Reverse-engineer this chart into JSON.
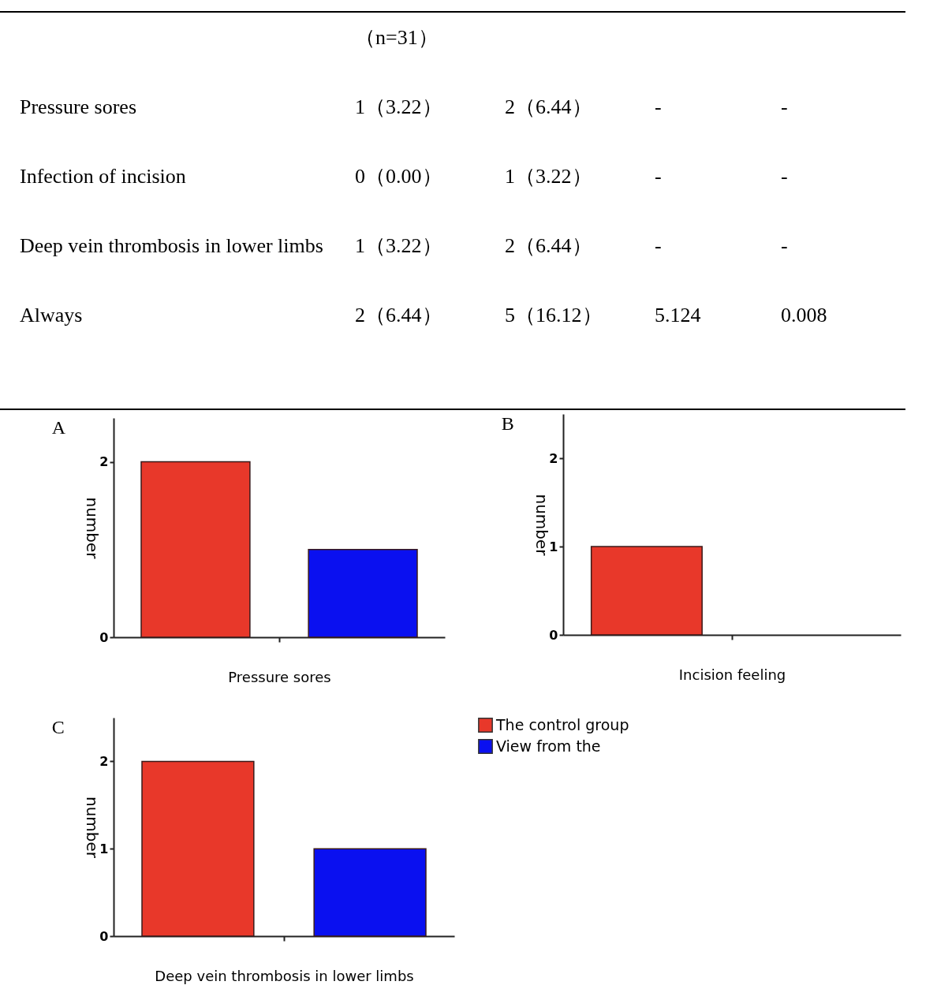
{
  "chart_data": [
    {
      "type": "other",
      "annotations": [
        "（n=31）",
        "Pressure sores",
        "1（3.22）",
        "2（6.44）",
        "-",
        "-",
        "Infection of incision",
        "0（0.00）",
        "1（3.22）",
        "-",
        "-",
        "Deep vein thrombosis in lower limbs",
        "1（3.22）",
        "2（6.44）",
        "-",
        "-",
        "Always",
        "2（6.44）",
        "5（16.12）",
        "5.124",
        "0.008"
      ]
    },
    {
      "type": "bar",
      "title": "A",
      "xlabel": "Pressure sores",
      "ylabel": "number",
      "categories": [
        null
      ],
      "series": [
        {
          "color": "#e8382a",
          "values": [
            2
          ]
        },
        {
          "color": "#0a10f0",
          "values": [
            1
          ]
        }
      ],
      "ylim": [
        0,
        2.5
      ],
      "yticks": [
        0,
        2
      ],
      "tick_labels": "y",
      "grid": false
    },
    {
      "type": "bar",
      "title": "B",
      "xlabel": "Incision feeling",
      "ylabel": "number",
      "categories": [
        null
      ],
      "series": [
        {
          "color": "#e8382a",
          "values": [
            1
          ]
        },
        {
          "color": "#0a10f0",
          "values": [
            0
          ]
        }
      ],
      "ylim": [
        0,
        2.5
      ],
      "yticks": [
        0,
        1,
        2
      ],
      "tick_labels": "y",
      "grid": false
    },
    {
      "type": "bar",
      "title": "C",
      "xlabel": "Deep vein thrombosis in lower limbs",
      "ylabel": "number",
      "categories": [
        null
      ],
      "series": [
        {
          "name": "The control group",
          "color": "#e8382a",
          "values": [
            2
          ]
        },
        {
          "name": "View from the",
          "color": "#0a10f0",
          "values": [
            1
          ]
        }
      ],
      "ylim": [
        0,
        2.5
      ],
      "yticks": [
        0,
        1,
        2
      ],
      "tick_labels": "y",
      "grid": false,
      "legend": "right"
    }
  ]
}
